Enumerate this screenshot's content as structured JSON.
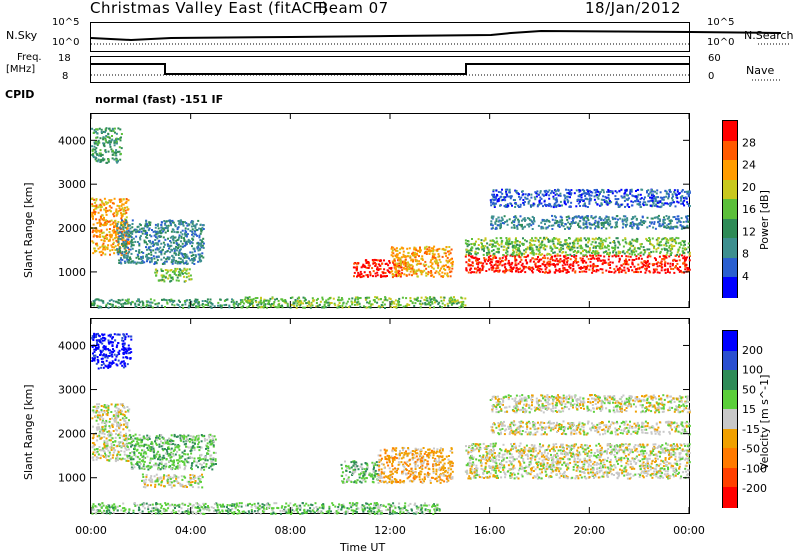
{
  "header": {
    "title": "Christmas Valley East (fitACF)",
    "beam": "Beam 07",
    "date": "18/Jan/2012"
  },
  "top_panels": {
    "nsky_label": "N.Sky",
    "nsearch_label": "N.Search",
    "nsky_ticks": [
      "10^5",
      "10^0"
    ],
    "nsearch_ticks": [
      "10^5",
      "10^0"
    ],
    "freq_label_1": "Freq.",
    "freq_label_2": "[MHz]",
    "freq_ticks": [
      "18",
      "8"
    ],
    "nave_label": "Nave",
    "nave_ticks": [
      "60",
      "0"
    ],
    "cpid_label": "CPID",
    "cpid_text": "normal (fast) -151 IF"
  },
  "colors": {
    "power_scale": [
      "#0000ff",
      "#2a5fd0",
      "#3d8f8f",
      "#2e8b57",
      "#5bbf3a",
      "#c8c81e",
      "#ff9c00",
      "#ff5a00",
      "#ff0000"
    ],
    "velocity_scale": [
      "#0000ff",
      "#2a4fd0",
      "#2e8b57",
      "#5bcf3a",
      "#c8c8c8",
      "#f0a000",
      "#ff7a00",
      "#ff4000",
      "#ff0000"
    ]
  },
  "chart_data": [
    {
      "type": "heatmap",
      "name": "power",
      "ylabel": "Slant Range [km]",
      "yticks": [
        "1000",
        "2000",
        "3000",
        "4000"
      ],
      "colorbar_label": "Power [dB]",
      "colorbar_ticks": [
        "4",
        "8",
        "12",
        "16",
        "20",
        "24",
        "28"
      ],
      "x_range_hours": [
        0,
        24
      ],
      "y_range_km": [
        200,
        4600
      ],
      "regions": [
        {
          "t0": 0.0,
          "t1": 1.5,
          "r0": 1400,
          "r1": 2700,
          "level": 6
        },
        {
          "t0": 0.0,
          "t1": 1.2,
          "r0": 3500,
          "r1": 4300,
          "level": 3
        },
        {
          "t0": 1.0,
          "t1": 4.5,
          "r0": 1200,
          "r1": 2200,
          "level": 2
        },
        {
          "t0": 2.5,
          "t1": 4.0,
          "r0": 800,
          "r1": 1100,
          "level": 4
        },
        {
          "t0": 0.0,
          "t1": 6.0,
          "r0": 200,
          "r1": 400,
          "level": 3
        },
        {
          "t0": 6.0,
          "t1": 15.0,
          "r0": 200,
          "r1": 450,
          "level": 4
        },
        {
          "t0": 10.5,
          "t1": 12.5,
          "r0": 900,
          "r1": 1300,
          "level": 8
        },
        {
          "t0": 12.0,
          "t1": 14.5,
          "r0": 900,
          "r1": 1600,
          "level": 6
        },
        {
          "t0": 15.0,
          "t1": 24.0,
          "r0": 1000,
          "r1": 1400,
          "level": 8
        },
        {
          "t0": 15.0,
          "t1": 24.0,
          "r0": 1400,
          "r1": 1800,
          "level": 4
        },
        {
          "t0": 16.0,
          "t1": 24.0,
          "r0": 2000,
          "r1": 2300,
          "level": 2
        },
        {
          "t0": 16.0,
          "t1": 24.0,
          "r0": 2500,
          "r1": 2900,
          "level": 1
        }
      ]
    },
    {
      "type": "heatmap",
      "name": "velocity",
      "ylabel": "Slant Range [km]",
      "yticks": [
        "1000",
        "2000",
        "3000",
        "4000"
      ],
      "colorbar_label": "Velocity [m s^-1]",
      "colorbar_ticks": [
        "200",
        "100",
        "50",
        "15",
        "-15",
        "-50",
        "-100",
        "-200"
      ],
      "x_range_hours": [
        0,
        24
      ],
      "y_range_km": [
        200,
        4600
      ],
      "xlabel": "Time UT",
      "xticks": [
        "00:00",
        "04:00",
        "08:00",
        "12:00",
        "16:00",
        "20:00",
        "00:00"
      ],
      "regions": [
        {
          "t0": 0.0,
          "t1": 1.6,
          "r0": 3500,
          "r1": 4300,
          "level": 0
        },
        {
          "t0": 0.0,
          "t1": 1.5,
          "r0": 1400,
          "r1": 2700,
          "level": 4
        },
        {
          "t0": 1.5,
          "t1": 5.0,
          "r0": 1200,
          "r1": 2000,
          "level": 3
        },
        {
          "t0": 2.0,
          "t1": 4.5,
          "r0": 800,
          "r1": 1100,
          "level": 4
        },
        {
          "t0": 0.0,
          "t1": 14.0,
          "r0": 200,
          "r1": 450,
          "level": 3
        },
        {
          "t0": 10.0,
          "t1": 11.5,
          "r0": 900,
          "r1": 1400,
          "level": 3
        },
        {
          "t0": 11.5,
          "t1": 14.5,
          "r0": 900,
          "r1": 1700,
          "level": 5
        },
        {
          "t0": 15.0,
          "t1": 24.0,
          "r0": 1000,
          "r1": 1800,
          "level": 4
        },
        {
          "t0": 16.0,
          "t1": 24.0,
          "r0": 2000,
          "r1": 2300,
          "level": 4
        },
        {
          "t0": 16.0,
          "t1": 24.0,
          "r0": 2500,
          "r1": 2900,
          "level": 4
        }
      ]
    }
  ]
}
